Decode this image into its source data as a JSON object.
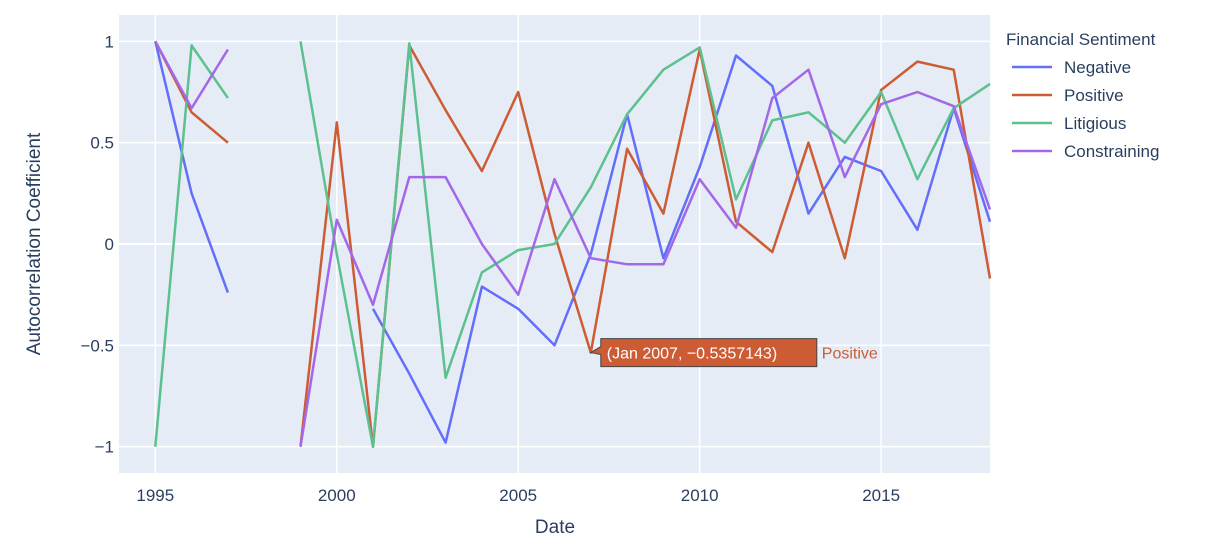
{
  "chart_data": {
    "type": "line",
    "xlabel": "Date",
    "ylabel": "Autocorrelation Coefficient",
    "legend_title": "Financial Sentiment",
    "legend_position": "right",
    "grid": true,
    "xlim": [
      1994.0,
      2018.0
    ],
    "ylim": [
      -1.13,
      1.13
    ],
    "x_ticks": [
      1995,
      2000,
      2005,
      2010,
      2015
    ],
    "x_tick_labels": [
      "1995",
      "2000",
      "2005",
      "2010",
      "2015"
    ],
    "y_ticks": [
      1,
      0.5,
      0,
      -0.5,
      -1
    ],
    "y_tick_labels": [
      "1",
      "0.5",
      "0",
      "−0.5",
      "−1"
    ],
    "series": [
      {
        "name": "Negative",
        "color": "#636efa",
        "points": [
          [
            [
              1995,
              1.0
            ],
            [
              1996,
              0.25
            ],
            [
              1997,
              -0.24
            ]
          ],
          [
            [
              2001,
              -0.32
            ],
            [
              2002,
              -0.64
            ],
            [
              2003,
              -0.98
            ],
            [
              2004,
              -0.21
            ],
            [
              2005,
              -0.32
            ],
            [
              2006,
              -0.5
            ],
            [
              2007,
              -0.05
            ],
            [
              2008,
              0.64
            ],
            [
              2009,
              -0.07
            ],
            [
              2010,
              0.38
            ],
            [
              2011,
              0.93
            ],
            [
              2012,
              0.78
            ],
            [
              2013,
              0.15
            ],
            [
              2014,
              0.43
            ],
            [
              2015,
              0.36
            ],
            [
              2016,
              0.07
            ],
            [
              2017,
              0.67
            ],
            [
              2018,
              0.11
            ]
          ]
        ]
      },
      {
        "name": "Positive",
        "color": "#cd5c34",
        "points": [
          [
            [
              1995,
              1.0
            ],
            [
              1996,
              0.65
            ],
            [
              1997,
              0.5
            ]
          ],
          [
            [
              1999,
              -1.0
            ],
            [
              2000,
              0.6
            ],
            [
              2001,
              -1.0
            ],
            [
              2002,
              0.98
            ],
            [
              2003,
              0.66
            ],
            [
              2004,
              0.36
            ],
            [
              2005,
              0.75
            ],
            [
              2006,
              0.05
            ],
            [
              2007,
              -0.5357143
            ],
            [
              2008,
              0.47
            ],
            [
              2009,
              0.15
            ],
            [
              2010,
              0.96
            ],
            [
              2011,
              0.11
            ],
            [
              2012,
              -0.04
            ],
            [
              2013,
              0.5
            ],
            [
              2014,
              -0.07
            ],
            [
              2015,
              0.76
            ],
            [
              2016,
              0.9
            ],
            [
              2017,
              0.86
            ],
            [
              2018,
              -0.17
            ]
          ]
        ]
      },
      {
        "name": "Litigious",
        "color": "#5cc08f",
        "points": [
          [
            [
              1995,
              -1.0
            ],
            [
              1996,
              0.98
            ],
            [
              1997,
              0.72
            ]
          ],
          [
            [
              1999,
              1.0
            ],
            [
              2000,
              -0.05
            ],
            [
              2001,
              -1.0
            ],
            [
              2002,
              0.99
            ],
            [
              2003,
              -0.66
            ],
            [
              2004,
              -0.14
            ],
            [
              2005,
              -0.03
            ],
            [
              2006,
              0.0
            ],
            [
              2007,
              0.28
            ],
            [
              2008,
              0.64
            ],
            [
              2009,
              0.86
            ],
            [
              2010,
              0.97
            ],
            [
              2011,
              0.22
            ],
            [
              2012,
              0.61
            ],
            [
              2013,
              0.65
            ],
            [
              2014,
              0.5
            ],
            [
              2015,
              0.75
            ],
            [
              2016,
              0.32
            ],
            [
              2017,
              0.67
            ],
            [
              2018,
              0.79
            ]
          ]
        ]
      },
      {
        "name": "Constraining",
        "color": "#a368e8",
        "points": [
          [
            [
              1995,
              1.0
            ],
            [
              1996,
              0.67
            ],
            [
              1997,
              0.96
            ]
          ],
          [
            [
              1999,
              -1.0
            ],
            [
              2000,
              0.12
            ],
            [
              2001,
              -0.3
            ],
            [
              2002,
              0.33
            ],
            [
              2003,
              0.33
            ],
            [
              2004,
              0.0
            ],
            [
              2005,
              -0.25
            ],
            [
              2006,
              0.32
            ],
            [
              2007,
              -0.07
            ],
            [
              2008,
              -0.1
            ],
            [
              2009,
              -0.1
            ],
            [
              2010,
              0.32
            ],
            [
              2011,
              0.08
            ],
            [
              2012,
              0.72
            ],
            [
              2013,
              0.86
            ],
            [
              2014,
              0.33
            ],
            [
              2015,
              0.69
            ],
            [
              2016,
              0.75
            ],
            [
              2017,
              0.68
            ],
            [
              2018,
              0.17
            ]
          ]
        ]
      }
    ],
    "hover": {
      "x": 2007,
      "y": -0.5357143,
      "text": "(Jan 2007, −0.5357143)",
      "series_label": "Positive",
      "color": "#cd5c34"
    }
  }
}
